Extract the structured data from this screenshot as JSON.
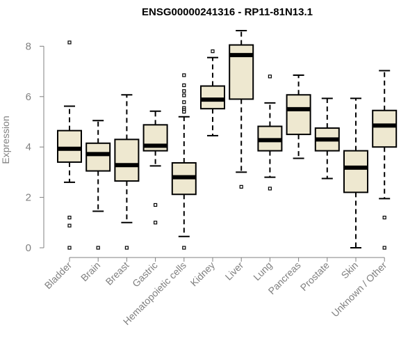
{
  "chart_data": {
    "type": "boxplot",
    "title": "ENSG00000241316 - RP11-81N13.1",
    "xlabel": "",
    "ylabel": "Expression",
    "ylim": [
      0,
      8.6
    ],
    "yticks": [
      "0",
      "2",
      "4",
      "6",
      "8"
    ],
    "grid": false,
    "categories": [
      "Bladder",
      "Brain",
      "Breast",
      "Gastric",
      "Hematopoietic cells",
      "Kidney",
      "Liver",
      "Lung",
      "Pancreas",
      "Prostate",
      "Skin",
      "Unknown / Other"
    ],
    "boxes": [
      {
        "name": "Bladder",
        "whisker_low": 2.6,
        "q1": 3.4,
        "median": 3.93,
        "q3": 4.65,
        "whisker_high": 5.62,
        "outliers": [
          8.15,
          1.2,
          0.88,
          0.0
        ]
      },
      {
        "name": "Brain",
        "whisker_low": 1.45,
        "q1": 3.05,
        "median": 3.72,
        "q3": 4.15,
        "whisker_high": 5.05,
        "outliers": [
          0.0
        ]
      },
      {
        "name": "Breast",
        "whisker_low": 1.0,
        "q1": 2.65,
        "median": 3.28,
        "q3": 4.3,
        "whisker_high": 6.07,
        "outliers": [
          0.0
        ]
      },
      {
        "name": "Gastric",
        "whisker_low": 3.25,
        "q1": 3.85,
        "median": 4.05,
        "q3": 4.88,
        "whisker_high": 5.42,
        "outliers": [
          1.7,
          1.0
        ]
      },
      {
        "name": "Hematopoietic cells",
        "whisker_low": 0.45,
        "q1": 2.12,
        "median": 2.8,
        "q3": 3.37,
        "whisker_high": 5.2,
        "outliers": [
          6.85,
          6.45,
          6.22,
          6.05,
          5.78,
          5.55,
          5.47,
          5.4,
          0.0
        ]
      },
      {
        "name": "Kidney",
        "whisker_low": 4.45,
        "q1": 5.52,
        "median": 5.88,
        "q3": 6.42,
        "whisker_high": 7.55,
        "outliers": [
          7.8
        ]
      },
      {
        "name": "Liver",
        "whisker_low": 3.0,
        "q1": 5.9,
        "median": 7.65,
        "q3": 8.05,
        "whisker_high": 8.62,
        "outliers": [
          2.42
        ]
      },
      {
        "name": "Lung",
        "whisker_low": 2.8,
        "q1": 3.85,
        "median": 4.27,
        "q3": 4.82,
        "whisker_high": 5.75,
        "outliers": [
          6.8,
          2.35
        ]
      },
      {
        "name": "Pancreas",
        "whisker_low": 3.55,
        "q1": 4.5,
        "median": 5.5,
        "q3": 6.07,
        "whisker_high": 6.85,
        "outliers": []
      },
      {
        "name": "Prostate",
        "whisker_low": 2.75,
        "q1": 3.85,
        "median": 4.3,
        "q3": 4.75,
        "whisker_high": 5.93,
        "outliers": []
      },
      {
        "name": "Skin",
        "whisker_low": 0.0,
        "q1": 2.2,
        "median": 3.18,
        "q3": 3.85,
        "whisker_high": 5.93,
        "outliers": []
      },
      {
        "name": "Unknown / Other",
        "whisker_low": 1.95,
        "q1": 4.0,
        "median": 4.85,
        "q3": 5.45,
        "whisker_high": 7.03,
        "outliers": [
          1.2,
          0.0
        ]
      }
    ],
    "colors": {
      "box_fill": "#EEE8D0",
      "box_stroke": "#000000",
      "median": "#000000",
      "axis": "#808080",
      "tick_text": "#808080",
      "title_text": "#000000"
    }
  }
}
